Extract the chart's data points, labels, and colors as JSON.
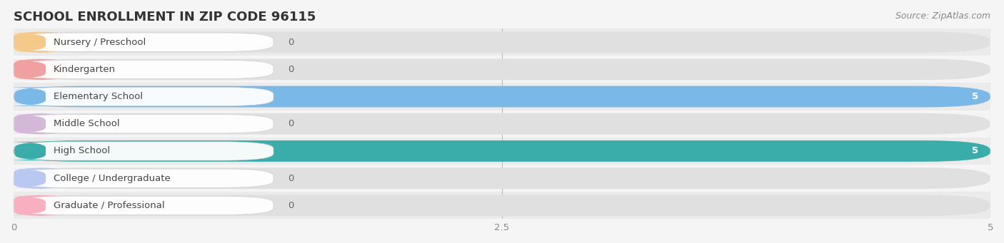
{
  "title": "SCHOOL ENROLLMENT IN ZIP CODE 96115",
  "source": "Source: ZipAtlas.com",
  "categories": [
    "Nursery / Preschool",
    "Kindergarten",
    "Elementary School",
    "Middle School",
    "High School",
    "College / Undergraduate",
    "Graduate / Professional"
  ],
  "values": [
    0,
    0,
    5,
    0,
    5,
    0,
    0
  ],
  "bar_colors": [
    "#f5c98a",
    "#f0a0a0",
    "#7ab8e8",
    "#d4b8d8",
    "#3aacaa",
    "#b8c8f0",
    "#f8b0c0"
  ],
  "xlim": [
    0,
    5
  ],
  "xticks": [
    0,
    2.5,
    5
  ],
  "background_color": "#f5f5f5",
  "row_bg_colors": [
    "#ebebeb",
    "#f5f5f5"
  ],
  "bar_bg_color": "#e0e0e0",
  "title_fontsize": 13,
  "source_fontsize": 9,
  "label_fontsize": 9.5,
  "value_fontsize": 9.5
}
